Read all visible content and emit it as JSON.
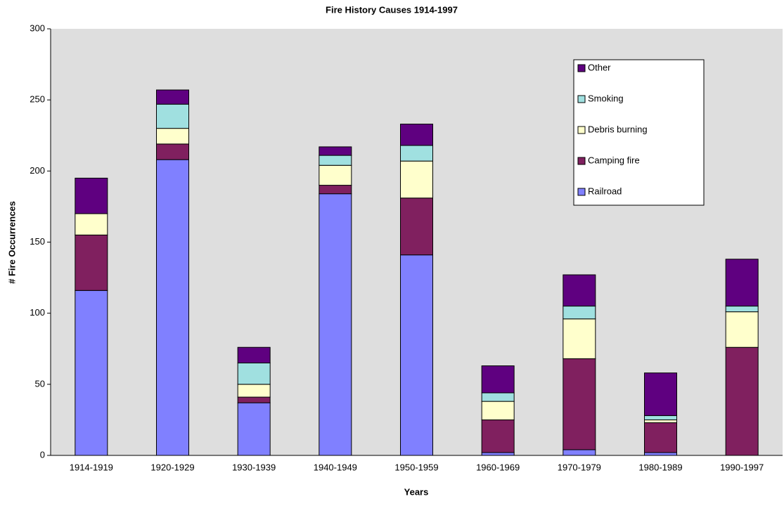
{
  "chart_data": {
    "type": "stacked-bar",
    "title": "Fire History Causes 1914-1997",
    "x_label": "Years",
    "y_label": "# Fire Occurrences",
    "categories": [
      "1914-1919",
      "1920-1929",
      "1930-1939",
      "1940-1949",
      "1950-1959",
      "1960-1969",
      "1970-1979",
      "1980-1989",
      "1990-1997"
    ],
    "series": [
      {
        "name": "Railroad",
        "color": "#8080ff",
        "values": [
          116,
          208,
          37,
          184,
          141,
          2,
          4,
          2,
          0
        ]
      },
      {
        "name": "Camping fire",
        "color": "#80205f",
        "values": [
          39,
          11,
          4,
          6,
          40,
          23,
          64,
          21,
          76
        ]
      },
      {
        "name": "Debris burning",
        "color": "#ffffcc",
        "values": [
          15,
          11,
          9,
          14,
          26,
          13,
          28,
          2,
          25
        ]
      },
      {
        "name": "Smoking",
        "color": "#a0e0e0",
        "values": [
          0,
          17,
          15,
          7,
          11,
          6,
          9,
          3,
          4
        ]
      },
      {
        "name": "Other",
        "color": "#5f0080",
        "values": [
          25,
          10,
          11,
          6,
          15,
          19,
          22,
          30,
          33
        ]
      }
    ],
    "ylim": [
      0,
      300
    ],
    "yticks": [
      0,
      50,
      100,
      150,
      200,
      250,
      300
    ],
    "grid": false,
    "legend": "upper right"
  }
}
